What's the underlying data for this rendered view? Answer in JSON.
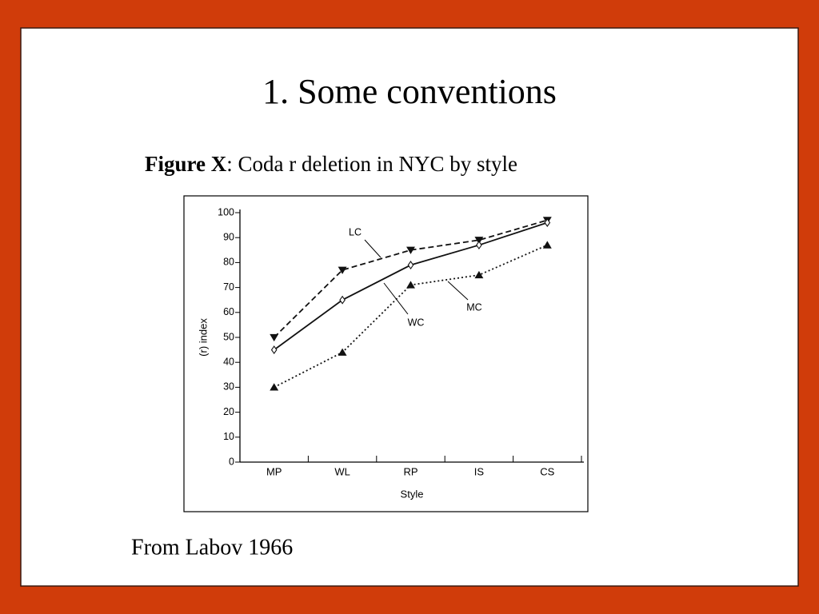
{
  "slide": {
    "title": "1. Some conventions",
    "caption_bold": "Figure X",
    "caption_rest": ": Coda r deletion in NYC by style",
    "source": "From Labov 1966"
  },
  "chart_data": {
    "type": "line",
    "x_label": "Style",
    "y_label": "(r) index",
    "categories": [
      "MP",
      "WL",
      "RP",
      "IS",
      "CS"
    ],
    "ylim": [
      0,
      100
    ],
    "yticks": [
      0,
      10,
      20,
      30,
      40,
      50,
      60,
      70,
      80,
      90,
      100
    ],
    "series": [
      {
        "name": "LC",
        "color": "#111111",
        "dash": "dashed",
        "marker": "triangle-down",
        "values": [
          50,
          77,
          85,
          89,
          97
        ]
      },
      {
        "name": "WC",
        "color": "#111111",
        "dash": "solid",
        "marker": "diamond",
        "values": [
          45,
          65,
          79,
          87,
          96
        ]
      },
      {
        "name": "MC",
        "color": "#111111",
        "dash": "dotted",
        "marker": "triangle-up",
        "values": [
          30,
          44,
          71,
          75,
          87
        ]
      }
    ]
  }
}
